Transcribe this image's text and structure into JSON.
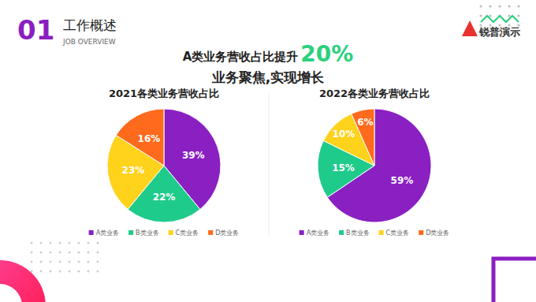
{
  "page": {
    "section_number": "01",
    "section_title": "工作概述",
    "section_subtitle": "JOB OVERVIEW",
    "brand": "锐普演示",
    "headline": "A类业务营收占比提升",
    "headline_value": "20%",
    "subheadline": "业务聚焦,实现增长"
  },
  "chart_data": [
    {
      "type": "pie",
      "title": "2021各类业务营收占比",
      "categories": [
        "A类业务",
        "B类业务",
        "C类业务",
        "D类业务"
      ],
      "values": [
        39,
        22,
        23,
        16
      ],
      "value_labels": [
        "39%",
        "22%",
        "23%",
        "16%"
      ],
      "colors": [
        "#8a1fc2",
        "#1fcb8b",
        "#ffd21c",
        "#ff6a1c"
      ],
      "data_labels": true,
      "legend": "bottom"
    },
    {
      "type": "pie",
      "title": "2022各类业务营收占比",
      "categories": [
        "A类业务",
        "B类业务",
        "C类业务",
        "D类业务"
      ],
      "values": [
        59,
        15,
        10,
        6
      ],
      "value_labels": [
        "59%",
        "15%",
        "10%",
        "6%"
      ],
      "colors": [
        "#8a1fc2",
        "#1fcb8b",
        "#ffd21c",
        "#ff6a1c"
      ],
      "data_labels": true,
      "legend": "bottom"
    }
  ]
}
